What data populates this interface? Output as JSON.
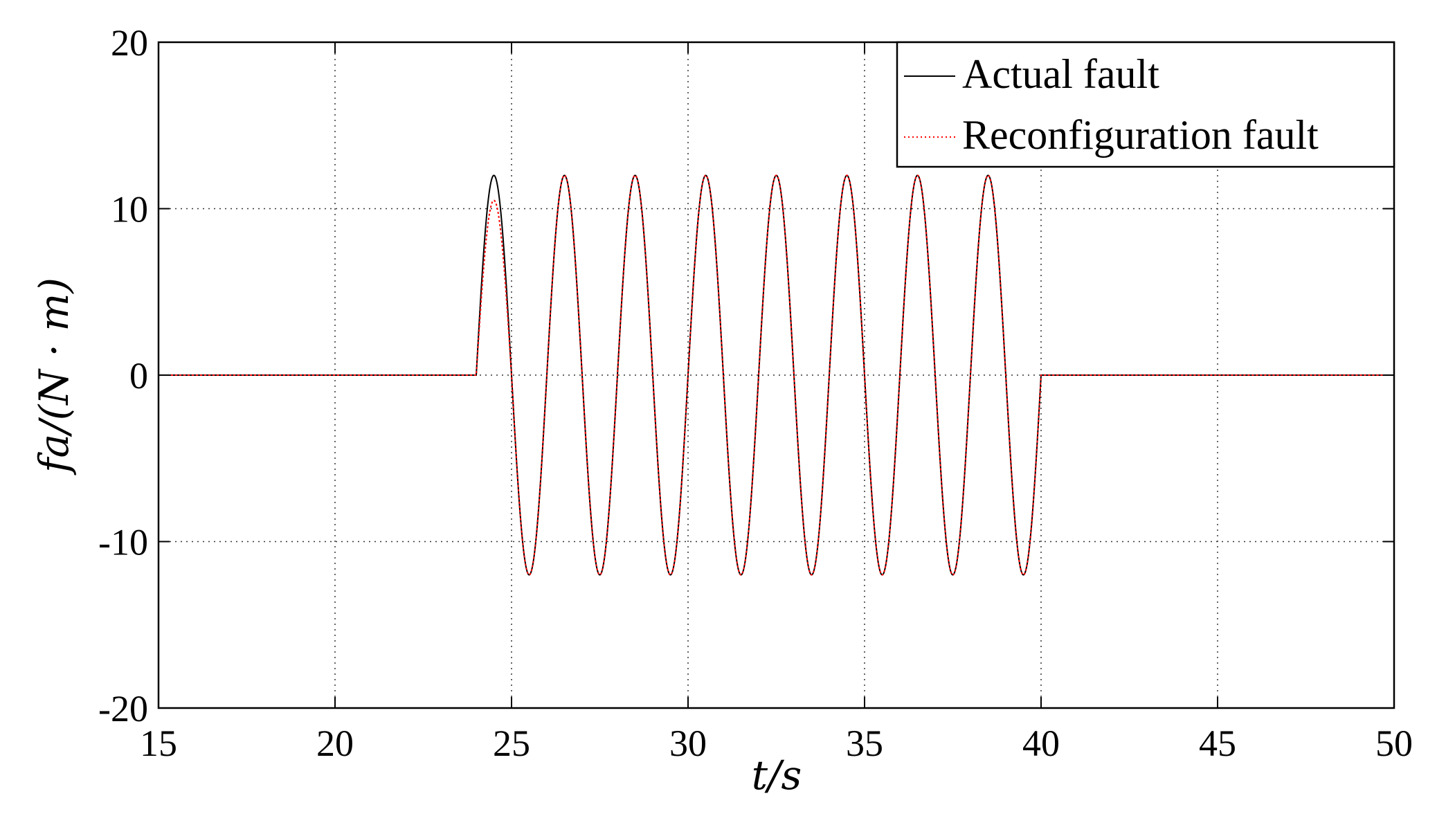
{
  "chart_data": {
    "type": "line",
    "title": "",
    "xlabel": "t/s",
    "ylabel": "fa/(N · m)",
    "xlim": [
      15,
      50
    ],
    "ylim": [
      -20,
      20
    ],
    "x_ticks": [
      15,
      20,
      25,
      30,
      35,
      40,
      45,
      50
    ],
    "y_ticks": [
      -20,
      -10,
      0,
      10,
      20
    ],
    "x_tick_labels": [
      "15",
      "20",
      "25",
      "30",
      "35",
      "40",
      "45",
      "50"
    ],
    "y_tick_labels": [
      "-20",
      "-10",
      "0",
      "10",
      "20"
    ],
    "grid": true,
    "legend_position": "top-right",
    "series": [
      {
        "name": "Actual fault",
        "color": "#000000",
        "style": "solid",
        "description_points": {
          "x": [
            15,
            24,
            24.5,
            25.5,
            26.5,
            27.5,
            28.5,
            29.5,
            30.5,
            31.5,
            32.5,
            33.5,
            34.5,
            35.5,
            36.5,
            37.5,
            38.5,
            39.5,
            40,
            50
          ],
          "y": [
            0,
            0,
            12,
            -12,
            12,
            -12,
            12,
            -12,
            12,
            -12,
            12,
            -12,
            12,
            -12,
            12,
            -12,
            12,
            -12,
            0,
            0
          ]
        }
      },
      {
        "name": "Reconfiguration fault",
        "color": "#ff0000",
        "style": "dotted",
        "description_points": {
          "x": [
            15,
            24,
            24.5,
            25.5,
            26.5,
            27.5,
            28.5,
            29.5,
            30.5,
            31.5,
            32.5,
            33.5,
            34.5,
            35.5,
            36.5,
            37.5,
            38.5,
            39.5,
            40,
            50
          ],
          "y": [
            0,
            0,
            10.5,
            -12,
            12,
            -12,
            12,
            -12,
            12,
            -12,
            12,
            -12,
            12,
            -12,
            12,
            -12,
            12,
            -12,
            0,
            0
          ]
        }
      }
    ],
    "signal": {
      "onset": 24,
      "end": 40,
      "amplitude": 12,
      "period": 2,
      "first_peak_reconfiguration": 10.5
    }
  }
}
